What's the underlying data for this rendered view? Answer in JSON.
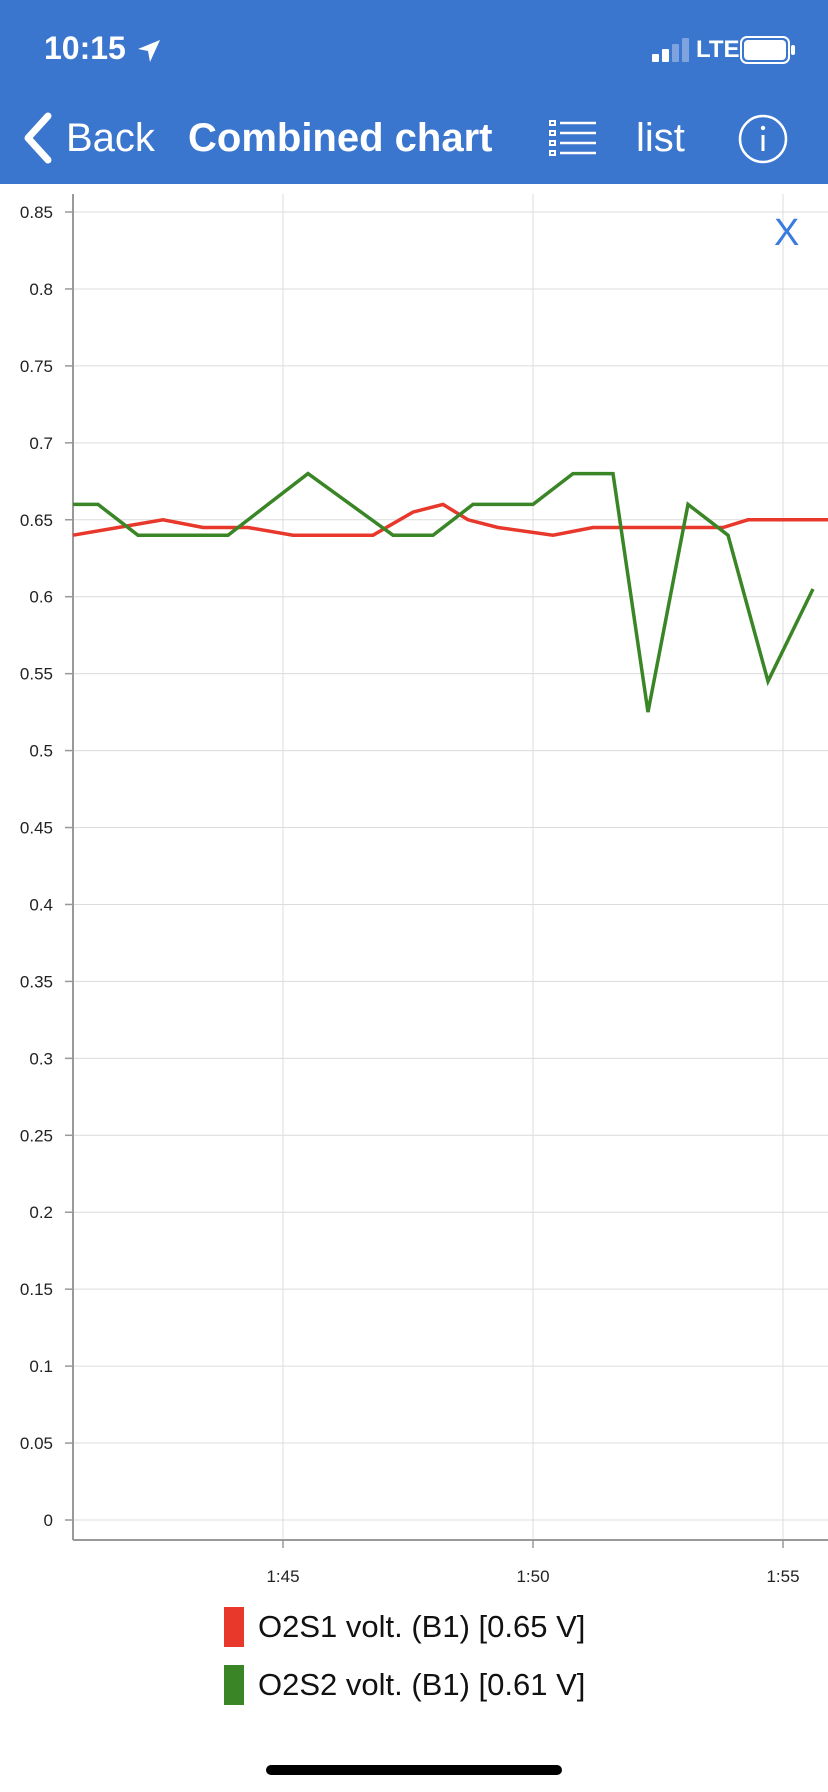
{
  "status_bar": {
    "time": "10:15",
    "network": "LTE",
    "icons": [
      "location-arrow-icon",
      "signal-bars-icon",
      "battery-icon"
    ]
  },
  "nav": {
    "back_label": "Back",
    "title": "Combined chart",
    "list_label": "list",
    "icons": [
      "chevron-left-icon",
      "list-icon",
      "info-icon"
    ]
  },
  "chart": {
    "close_label": "X"
  },
  "colors": {
    "header_bg": "#3a75ce",
    "series1": "#e8382b",
    "series2": "#3a8626",
    "close_text": "#3a7be0"
  },
  "chart_data": {
    "type": "line",
    "title": "",
    "xlabel": "",
    "ylabel": "",
    "ylim": [
      0,
      0.85
    ],
    "yticks": [
      "0",
      "0.05",
      "0.1",
      "0.15",
      "0.2",
      "0.25",
      "0.3",
      "0.35",
      "0.4",
      "0.45",
      "0.5",
      "0.55",
      "0.6",
      "0.65",
      "0.7",
      "0.75",
      "0.8",
      "0.85"
    ],
    "xlim": [
      "1:40.8",
      "1:55.9"
    ],
    "xticks": [
      "1:45",
      "1:50",
      "1:55"
    ],
    "grid": true,
    "legend_position": "bottom",
    "series": [
      {
        "name": "O2S1 volt. (B1) [0.65 V]",
        "color": "#e8382b",
        "x": [
          "1:40.8",
          "1:42.6",
          "1:43.4",
          "1:44.3",
          "1:45.2",
          "1:46.8",
          "1:47.6",
          "1:48.2",
          "1:48.7",
          "1:49.3",
          "1:50.4",
          "1:51.2",
          "1:53.8",
          "1:54.3",
          "1:55.9"
        ],
        "values": [
          0.64,
          0.65,
          0.645,
          0.645,
          0.64,
          0.64,
          0.655,
          0.66,
          0.65,
          0.645,
          0.64,
          0.645,
          0.645,
          0.65,
          0.65
        ]
      },
      {
        "name": "O2S2 volt. (B1) [0.61 V]",
        "color": "#3a8626",
        "x": [
          "1:40.8",
          "1:41.3",
          "1:42.1",
          "1:43.9",
          "1:44.7",
          "1:45.5",
          "1:47.2",
          "1:48.0",
          "1:48.8",
          "1:50.0",
          "1:50.8",
          "1:51.6",
          "1:52.3",
          "1:53.1",
          "1:53.9",
          "1:54.7",
          "1:55.6"
        ],
        "values": [
          0.66,
          0.66,
          0.64,
          0.64,
          0.66,
          0.68,
          0.64,
          0.64,
          0.66,
          0.66,
          0.68,
          0.68,
          0.525,
          0.66,
          0.64,
          0.545,
          0.605
        ]
      }
    ]
  }
}
